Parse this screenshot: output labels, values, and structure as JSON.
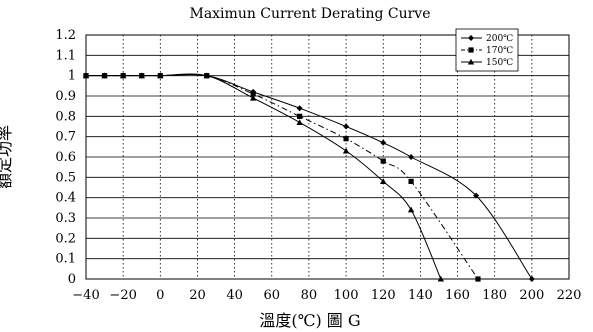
{
  "chart_data": {
    "type": "line",
    "title": "Maximun Current Derating Curve",
    "xlabel": "溫度(℃) 圖 G",
    "ylabel": "額定功率",
    "xlim": [
      -40,
      220
    ],
    "ylim": [
      0,
      1.2
    ],
    "x_ticks": [
      -40,
      -20,
      0,
      20,
      40,
      60,
      80,
      100,
      120,
      140,
      160,
      180,
      200,
      220
    ],
    "y_ticks": [
      0,
      0.1,
      0.2,
      0.3,
      0.4,
      0.5,
      0.6,
      0.7,
      0.8,
      0.9,
      1,
      1.1,
      1.2
    ],
    "x_tick_labels": [
      "−40",
      "−20",
      "0",
      "20",
      "40",
      "60",
      "80",
      "100",
      "120",
      "140",
      "160",
      "180",
      "200",
      "220"
    ],
    "y_tick_labels": [
      "0",
      "0.1",
      "0.2",
      "0.3",
      "0.4",
      "0.5",
      "0.6",
      "0.7",
      "0.8",
      "0.9",
      "1",
      "1.1",
      "1.2"
    ],
    "grid": {
      "x": "dotted",
      "y": "solid"
    },
    "legend_position": "top-right",
    "series": [
      {
        "name": "200℃",
        "marker": "diamond",
        "dash": "solid",
        "x": [
          -40,
          -30,
          -20,
          -10,
          0,
          25,
          50,
          75,
          100,
          120,
          135,
          170,
          200
        ],
        "y": [
          1,
          1,
          1,
          1,
          1,
          1,
          0.92,
          0.84,
          0.75,
          0.67,
          0.6,
          0.41,
          0
        ]
      },
      {
        "name": "170℃",
        "marker": "square",
        "dash": "dashdot",
        "x": [
          -40,
          -30,
          -20,
          -10,
          0,
          25,
          50,
          75,
          100,
          120,
          135,
          171
        ],
        "y": [
          1,
          1,
          1,
          1,
          1,
          1,
          0.91,
          0.8,
          0.69,
          0.58,
          0.48,
          0
        ]
      },
      {
        "name": "150℃",
        "marker": "triangle",
        "dash": "solid",
        "x": [
          -40,
          -30,
          -20,
          -10,
          0,
          25,
          50,
          75,
          100,
          120,
          135,
          151
        ],
        "y": [
          1,
          1,
          1,
          1,
          1,
          1,
          0.89,
          0.77,
          0.63,
          0.48,
          0.34,
          0
        ]
      }
    ]
  }
}
